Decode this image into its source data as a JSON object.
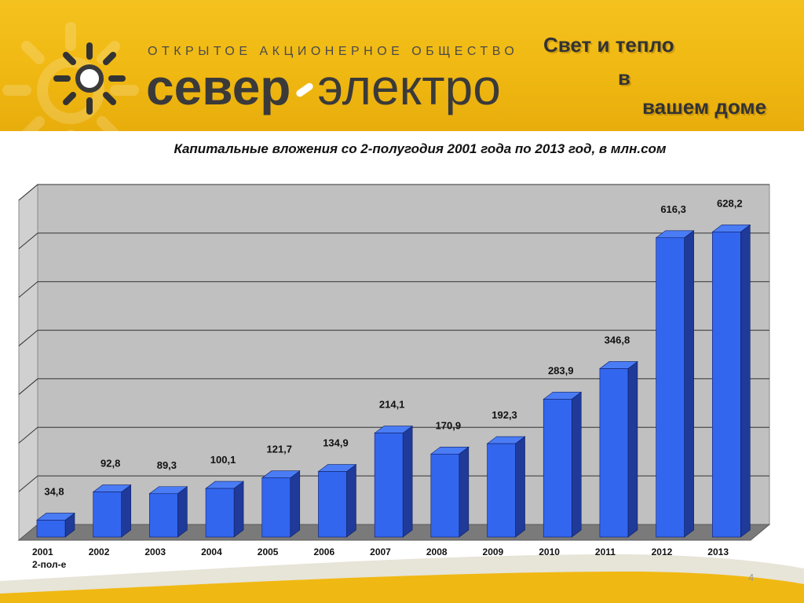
{
  "banner": {
    "company_type": "ОТКРЫТОЕ АКЦИОНЕРНОЕ ОБЩЕСТВО",
    "brand_part1": "север",
    "brand_part2": "электро",
    "slogan_line1": "Свет и тепло",
    "slogan_line2": "в",
    "slogan_line3": "вашем доме",
    "logo_icon": "sun-icon",
    "color": "#f0b812"
  },
  "chart_data": {
    "type": "bar",
    "title": "Капитальные вложения со 2-полугодия 2001 года по 2013 год, в млн.сом",
    "categories": [
      "2001",
      "2002",
      "2003",
      "2004",
      "2005",
      "2006",
      "2007",
      "2008",
      "2009",
      "2010",
      "2011",
      "2012",
      "2013"
    ],
    "category_sublabels": [
      "2-пол-е",
      "",
      "",
      "",
      "",
      "",
      "",
      "",
      "",
      "",
      "",
      "",
      ""
    ],
    "values": [
      34.8,
      92.8,
      89.3,
      100.1,
      121.7,
      134.9,
      214.1,
      170.9,
      192.3,
      283.9,
      346.8,
      616.3,
      628.2
    ],
    "value_labels": [
      "34,8",
      "92,8",
      "89,3",
      "100,1",
      "121,7",
      "134,9",
      "214,1",
      "170,9",
      "192,3",
      "283,9",
      "346,8",
      "616,3",
      "628,2"
    ],
    "ylim": [
      0,
      700
    ],
    "grid": true,
    "style": "3d",
    "bar_color": "#3366ee",
    "wall_color": "#c0c0c0"
  },
  "footer": {
    "page_number": "4"
  }
}
